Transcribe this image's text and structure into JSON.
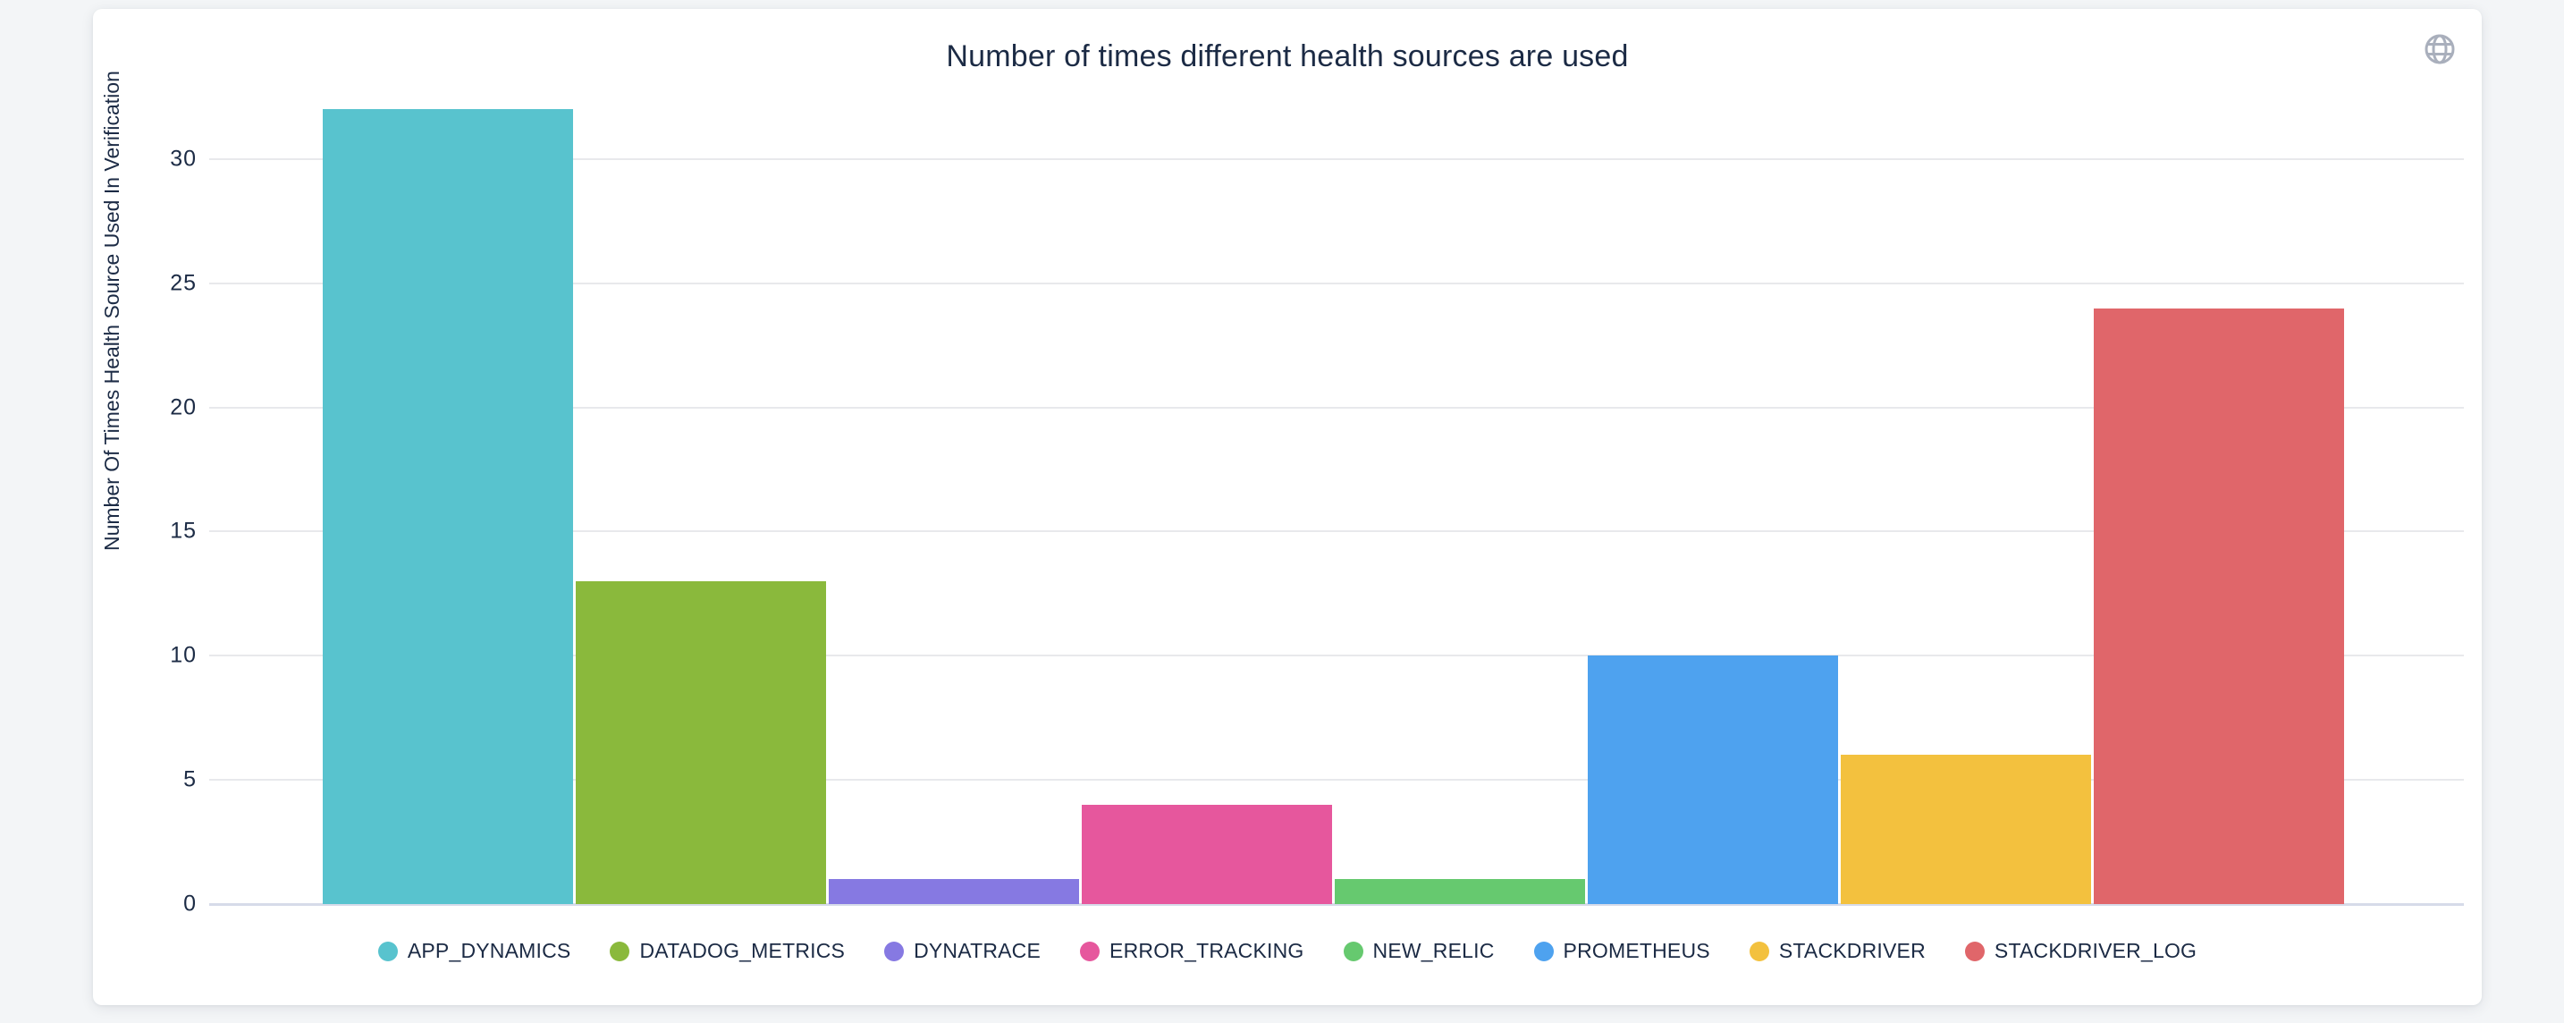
{
  "page": {
    "background_color": "#f3f5f7",
    "card_background": "#ffffff"
  },
  "header": {
    "title": "Number of times different health sources are used",
    "globe_icon": "globe-icon",
    "globe_icon_color": "#a9afbc"
  },
  "chart_data": {
    "type": "bar",
    "title": "Number of times different health sources are used",
    "xlabel": "",
    "ylabel": "Number Of Times Health Source Used In Verification",
    "ylim": [
      0,
      32
    ],
    "yticks": [
      0,
      5,
      10,
      15,
      20,
      25,
      30
    ],
    "grid": true,
    "legend_position": "bottom",
    "categories": [
      "APP_DYNAMICS",
      "DATADOG_METRICS",
      "DYNATRACE",
      "ERROR_TRACKING",
      "NEW_RELIC",
      "PROMETHEUS",
      "STACKDRIVER",
      "STACKDRIVER_LOG"
    ],
    "series": [
      {
        "name": "APP_DYNAMICS",
        "value": 32,
        "color": "#58C3CE"
      },
      {
        "name": "DATADOG_METRICS",
        "value": 13,
        "color": "#8AB93C"
      },
      {
        "name": "DYNATRACE",
        "value": 1,
        "color": "#8679E2"
      },
      {
        "name": "ERROR_TRACKING",
        "value": 4,
        "color": "#E6579D"
      },
      {
        "name": "NEW_RELIC",
        "value": 1,
        "color": "#66C96F"
      },
      {
        "name": "PROMETHEUS",
        "value": 10,
        "color": "#4EA2EF"
      },
      {
        "name": "STACKDRIVER",
        "value": 6,
        "color": "#F3C13E"
      },
      {
        "name": "STACKDRIVER_LOG",
        "value": 24,
        "color": "#E0666A"
      }
    ],
    "text_color": "#1c2b45",
    "grid_color": "#e8e9ec",
    "axis_line_color": "#d6dbe9"
  }
}
